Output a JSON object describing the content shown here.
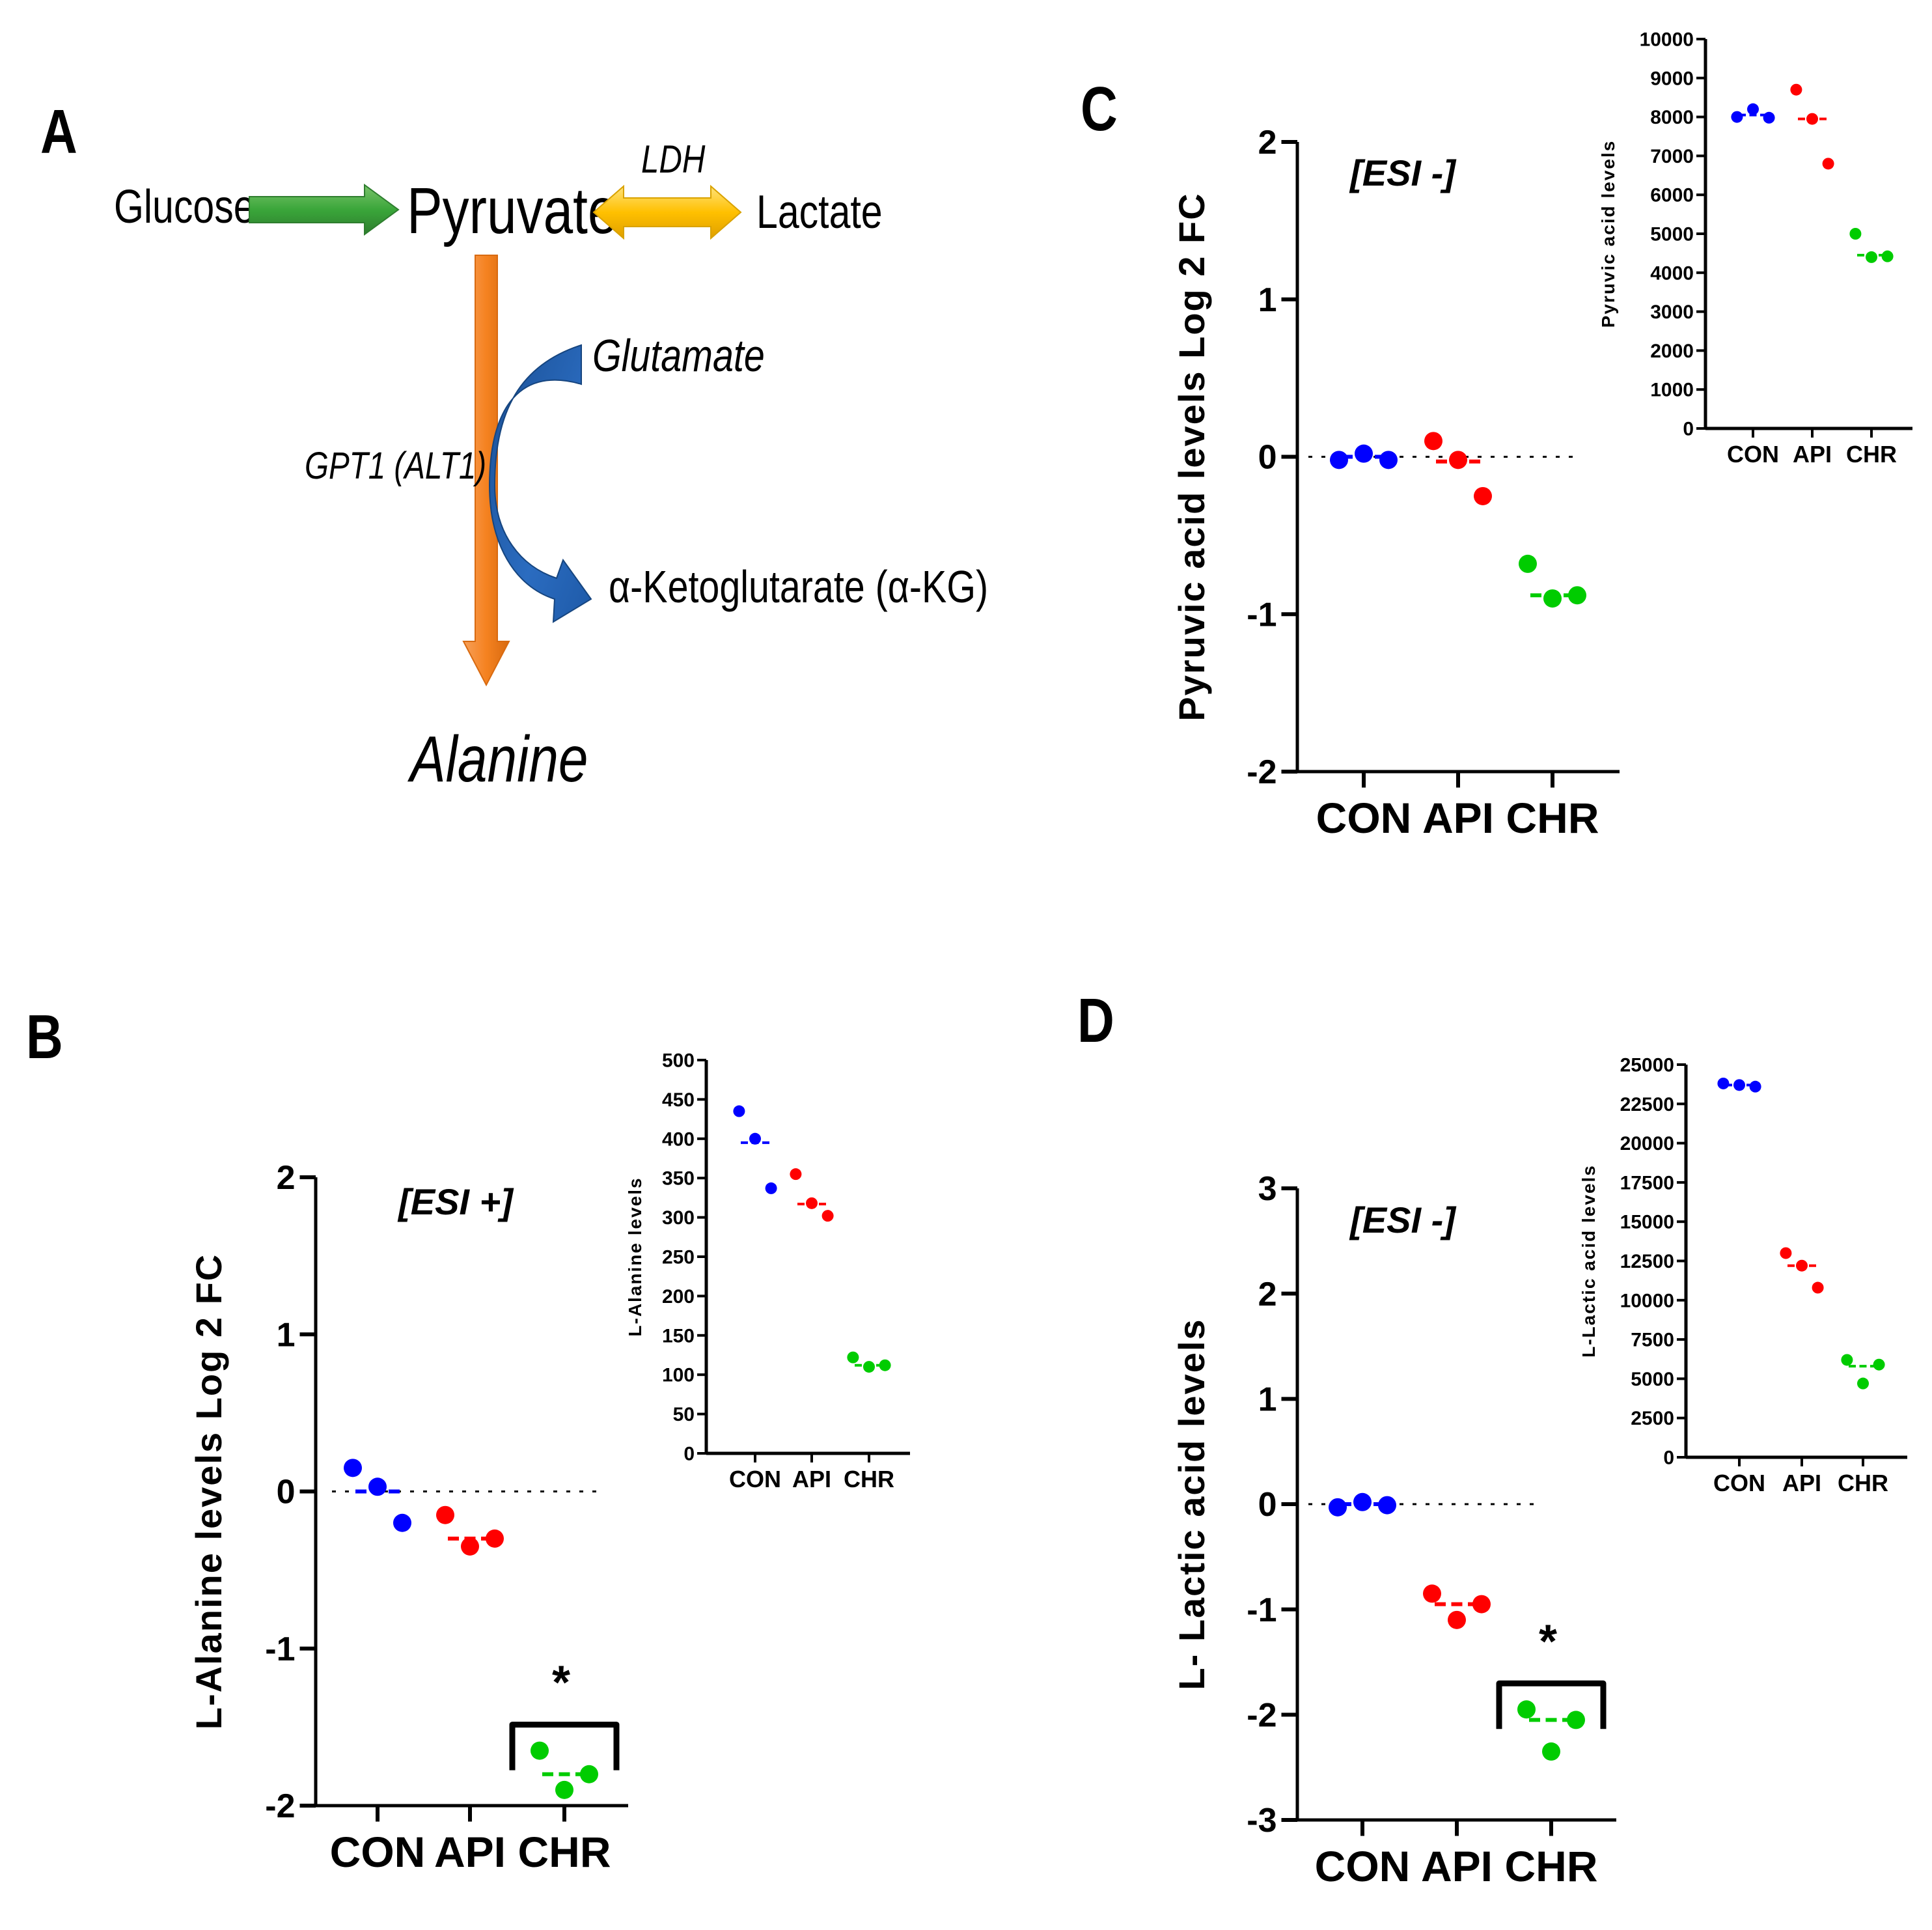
{
  "panel_labels": [
    "A",
    "B",
    "C",
    "D"
  ],
  "colors": {
    "CON": "#0000ff",
    "API": "#ff0000",
    "CHR": "#00cc00",
    "green_arrow": "#3aa63a",
    "yellow_arrow": "#ffc000",
    "orange_arrow": "#f58220",
    "blue_arrow": "#1f5fa8"
  },
  "pathway": {
    "glucose": "Glucose",
    "pyruvate": "Pyruvate",
    "lactate": "Lactate",
    "ldh": "LDH",
    "glutamate": "Glutamate",
    "akg": "α-Ketoglutarate (α-KG)",
    "gpt1": "GPT1 (ALT1)",
    "alanine": "Alanine",
    "icons": [
      "right-arrow-icon",
      "double-arrow-icon",
      "down-arrow-icon",
      "curved-arrow-icon"
    ]
  },
  "chart_data": [
    {
      "id": "B-main",
      "type": "scatter",
      "categories": [
        "CON",
        "API",
        "CHR"
      ],
      "ylabel": "L-Alanine levels Log 2 FC",
      "ylim": [
        -2,
        2
      ],
      "yticks": [
        -2,
        -1,
        0,
        1,
        2
      ],
      "annotation": "[ESI +]",
      "significance": {
        "category": "CHR",
        "label": "*"
      },
      "baseline": 0,
      "series": [
        {
          "name": "CON",
          "points": [
            0.15,
            0.03,
            -0.2
          ],
          "mean": 0.0
        },
        {
          "name": "API",
          "points": [
            -0.15,
            -0.35,
            -0.3
          ],
          "mean": -0.3
        },
        {
          "name": "CHR",
          "points": [
            -1.65,
            -1.9,
            -1.8
          ],
          "mean": -1.8
        }
      ]
    },
    {
      "id": "B-inset",
      "type": "scatter",
      "categories": [
        "CON",
        "API",
        "CHR"
      ],
      "ylabel": "L-Alanine levels",
      "ylim": [
        0,
        500
      ],
      "yticks": [
        0,
        50,
        100,
        150,
        200,
        250,
        300,
        350,
        400,
        450,
        500
      ],
      "series": [
        {
          "name": "CON",
          "points": [
            435,
            400,
            337
          ],
          "mean": 395
        },
        {
          "name": "API",
          "points": [
            355,
            318,
            302
          ],
          "mean": 317
        },
        {
          "name": "CHR",
          "points": [
            122,
            110,
            112
          ],
          "mean": 112
        }
      ]
    },
    {
      "id": "C-main",
      "type": "scatter",
      "categories": [
        "CON",
        "API",
        "CHR"
      ],
      "ylabel": "Pyruvic acid levels Log 2 FC",
      "ylim": [
        -2,
        2
      ],
      "yticks": [
        -2,
        -1,
        0,
        1,
        2
      ],
      "annotation": "[ESI -]",
      "baseline": 0,
      "series": [
        {
          "name": "CON",
          "points": [
            -0.02,
            0.02,
            -0.02
          ],
          "mean": 0.0
        },
        {
          "name": "API",
          "points": [
            0.1,
            -0.02,
            -0.25
          ],
          "mean": -0.03
        },
        {
          "name": "CHR",
          "points": [
            -0.68,
            -0.9,
            -0.88
          ],
          "mean": -0.88
        }
      ]
    },
    {
      "id": "C-inset",
      "type": "scatter",
      "categories": [
        "CON",
        "API",
        "CHR"
      ],
      "ylabel": "Pyruvic acid levels",
      "ylim": [
        0,
        10000
      ],
      "yticks": [
        0,
        1000,
        2000,
        3000,
        4000,
        5000,
        6000,
        7000,
        8000,
        9000,
        10000
      ],
      "series": [
        {
          "name": "CON",
          "points": [
            8000,
            8200,
            7980
          ],
          "mean": 8050
        },
        {
          "name": "API",
          "points": [
            8700,
            7950,
            6800
          ],
          "mean": 7950
        },
        {
          "name": "CHR",
          "points": [
            5000,
            4400,
            4420
          ],
          "mean": 4450
        }
      ]
    },
    {
      "id": "D-main",
      "type": "scatter",
      "categories": [
        "CON",
        "API",
        "CHR"
      ],
      "ylabel": "L- Lactic acid levels",
      "ylim": [
        -3,
        3
      ],
      "yticks": [
        -3,
        -2,
        -1,
        0,
        1,
        2,
        3
      ],
      "annotation": "[ESI -]",
      "significance": {
        "category": "CHR",
        "label": "*"
      },
      "baseline": 0,
      "series": [
        {
          "name": "CON",
          "points": [
            -0.03,
            0.02,
            -0.01
          ],
          "mean": 0.0
        },
        {
          "name": "API",
          "points": [
            -0.85,
            -1.1,
            -0.95
          ],
          "mean": -0.95
        },
        {
          "name": "CHR",
          "points": [
            -1.95,
            -2.35,
            -2.05
          ],
          "mean": -2.05
        }
      ]
    },
    {
      "id": "D-inset",
      "type": "scatter",
      "categories": [
        "CON",
        "API",
        "CHR"
      ],
      "ylabel": "L-Lactic acid levels",
      "ylim": [
        0,
        25000
      ],
      "yticks": [
        0,
        2500,
        5000,
        7500,
        10000,
        12500,
        15000,
        17500,
        20000,
        22500,
        25000
      ],
      "series": [
        {
          "name": "CON",
          "points": [
            23800,
            23700,
            23600
          ],
          "mean": 23700
        },
        {
          "name": "API",
          "points": [
            13000,
            12200,
            10800
          ],
          "mean": 12200
        },
        {
          "name": "CHR",
          "points": [
            6200,
            4700,
            5900
          ],
          "mean": 5800
        }
      ]
    }
  ]
}
